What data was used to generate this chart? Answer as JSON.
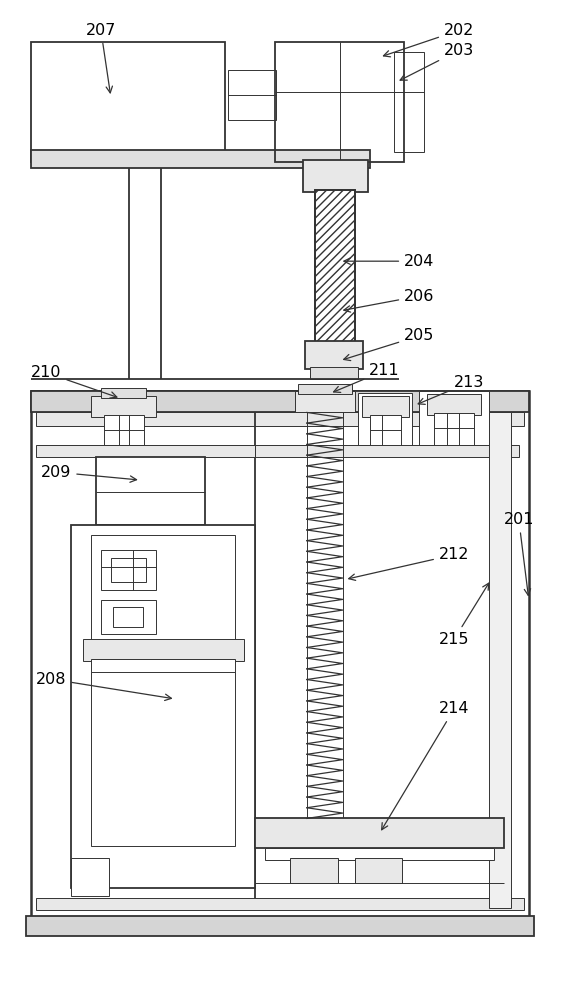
{
  "bg_color": "#ffffff",
  "line_color": "#333333",
  "lw_main": 1.3,
  "lw_thin": 0.7,
  "lw_thick": 1.8
}
